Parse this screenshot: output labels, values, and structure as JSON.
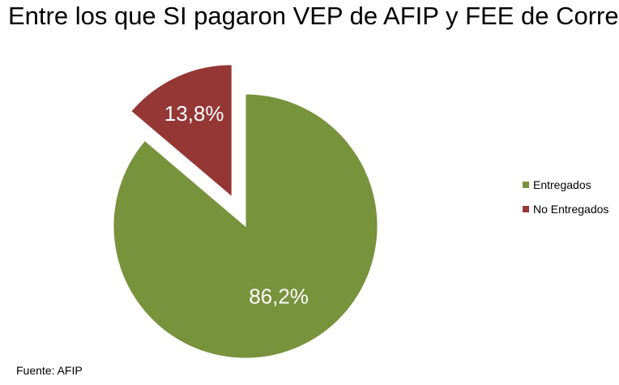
{
  "chart_data": {
    "type": "pie",
    "title": "Entre los que SI pagaron VEP de AFIP y FEE de Correo",
    "slices": [
      {
        "label": "Entregados",
        "value": 86.2,
        "display": "86,2%",
        "color": "#77933C",
        "exploded": false
      },
      {
        "label": "No Entregados",
        "value": 13.8,
        "display": "13,8%",
        "color": "#953735",
        "exploded": true
      }
    ],
    "legend_position": "right",
    "source": "Fuente: AFIP"
  }
}
